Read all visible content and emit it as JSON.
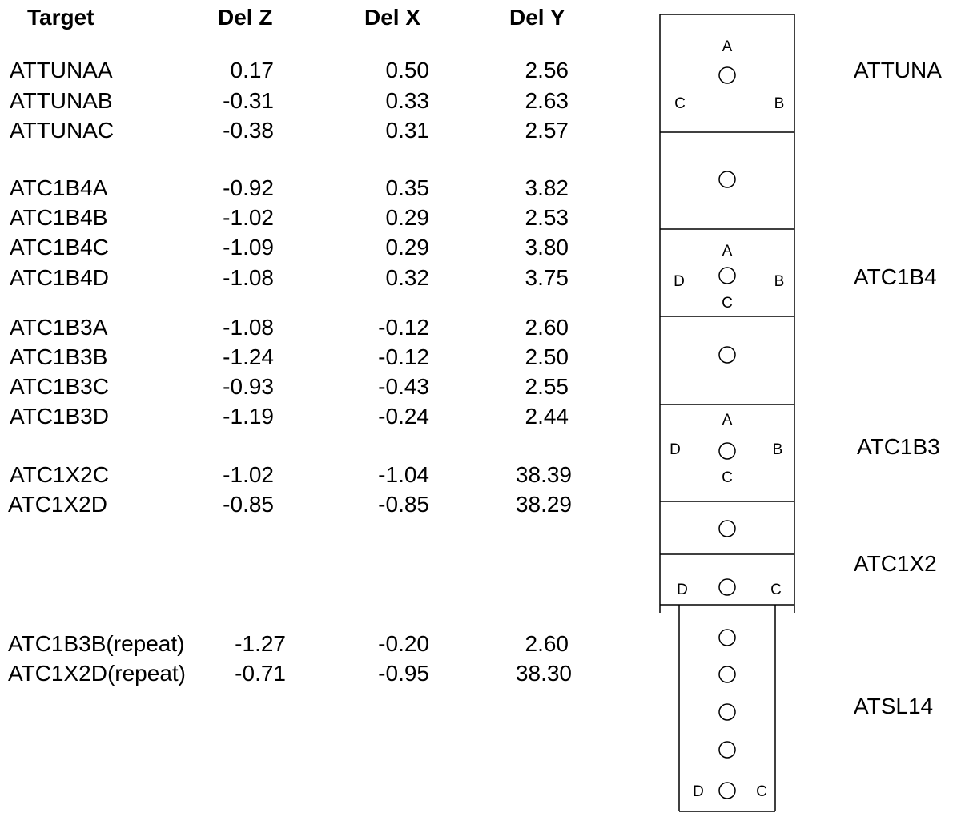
{
  "headers": {
    "target": "Target",
    "delz": "Del Z",
    "delx": "Del X",
    "dely": "Del Y"
  },
  "rows": [
    {
      "target": "ATTUNAA",
      "delz": "0.17",
      "delx": "0.50",
      "dely": "2.56"
    },
    {
      "target": "ATTUNAB",
      "delz": "-0.31",
      "delx": "0.33",
      "dely": "2.63"
    },
    {
      "target": "ATTUNAC",
      "delz": "-0.38",
      "delx": "0.31",
      "dely": "2.57"
    },
    {
      "target": "ATC1B4A",
      "delz": "-0.92",
      "delx": "0.35",
      "dely": "3.82"
    },
    {
      "target": "ATC1B4B",
      "delz": "-1.02",
      "delx": "0.29",
      "dely": "2.53"
    },
    {
      "target": "ATC1B4C",
      "delz": "-1.09",
      "delx": "0.29",
      "dely": "3.80"
    },
    {
      "target": "ATC1B4D",
      "delz": "-1.08",
      "delx": "0.32",
      "dely": "3.75"
    },
    {
      "target": "ATC1B3A",
      "delz": "-1.08",
      "delx": "-0.12",
      "dely": "2.60"
    },
    {
      "target": "ATC1B3B",
      "delz": "-1.24",
      "delx": "-0.12",
      "dely": "2.50"
    },
    {
      "target": "ATC1B3C",
      "delz": "-0.93",
      "delx": "-0.43",
      "dely": "2.55"
    },
    {
      "target": "ATC1B3D",
      "delz": "-1.19",
      "delx": "-0.24",
      "dely": "2.44"
    },
    {
      "target": "ATC1X2C",
      "delz": "-1.02",
      "delx": "-1.04",
      "dely": "38.39"
    },
    {
      "target": "ATC1X2D",
      "delz": "-0.85",
      "delx": "-0.85",
      "dely": "38.29"
    },
    {
      "target": "ATC1B3B(repeat)",
      "delz": "-1.27",
      "delx": "-0.20",
      "dely": "2.60"
    },
    {
      "target": "ATC1X2D(repeat)",
      "delz": "-0.71",
      "delx": "-0.95",
      "dely": "38.30"
    }
  ],
  "sections": [
    "ATTUNA",
    "ATC1B4",
    "ATC1B3",
    "ATC1X2",
    "ATSL14"
  ],
  "diagram_labels": {
    "attuna": [
      "A",
      "C",
      "B"
    ],
    "atc1b4": [
      "A",
      "D",
      "B",
      "C"
    ],
    "atc1b3": [
      "A",
      "D",
      "B",
      "C"
    ],
    "atc1x2": [
      "D",
      "C"
    ],
    "atsl14": [
      "D",
      "C"
    ]
  }
}
